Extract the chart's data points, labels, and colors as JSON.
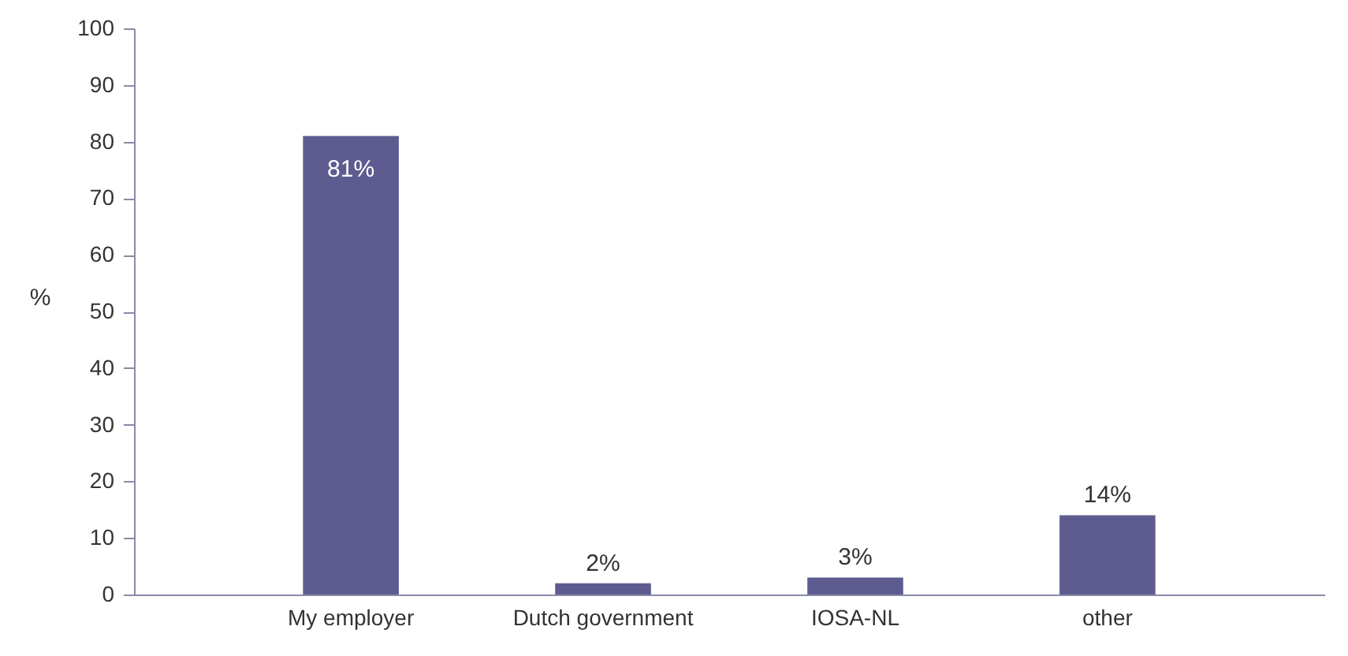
{
  "chart_data": {
    "type": "bar",
    "ylabel": "%",
    "categories": [
      "My employer",
      "Dutch government",
      "IOSA-NL",
      "other"
    ],
    "values": [
      81,
      2,
      3,
      14
    ],
    "value_labels": [
      "81%",
      "2%",
      "3%",
      "14%"
    ],
    "color": "#5d5b8f",
    "ylim": [
      0,
      100
    ],
    "yticks": [
      0,
      10,
      20,
      30,
      40,
      50,
      60,
      70,
      80,
      90,
      100
    ],
    "grid": false
  }
}
